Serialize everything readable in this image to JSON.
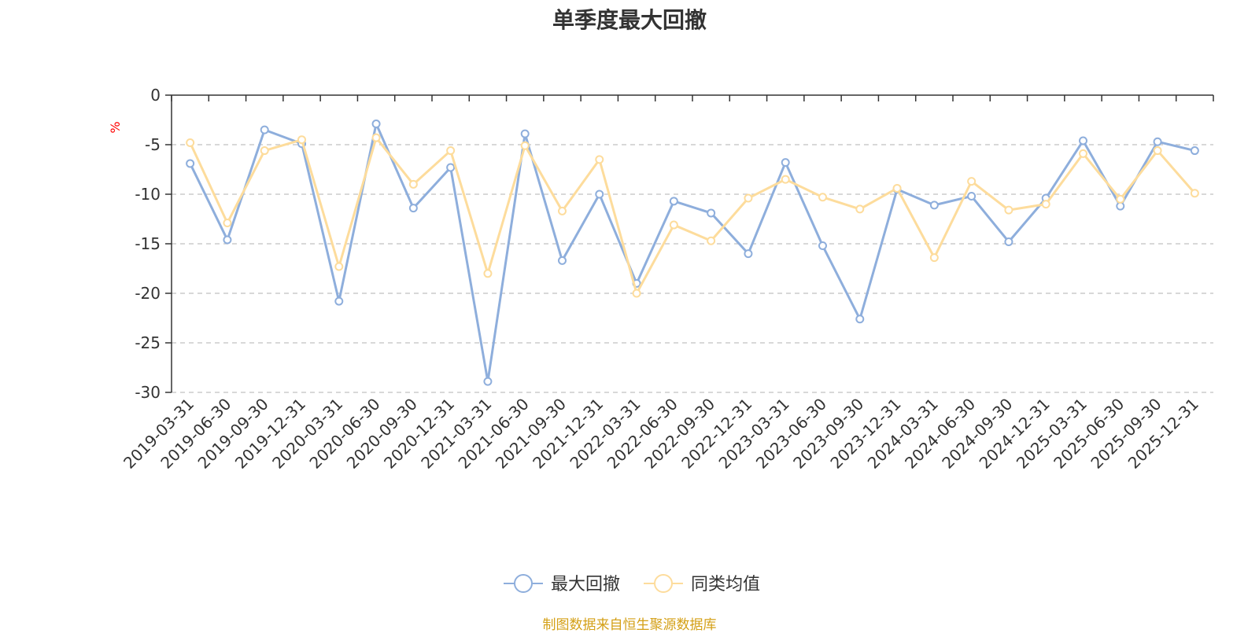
{
  "chart_data": {
    "type": "line",
    "title": "单季度最大回撤",
    "ylabel": "%",
    "ylim": [
      -30,
      0
    ],
    "yticks": [
      0,
      -5,
      -10,
      -15,
      -20,
      -25,
      -30
    ],
    "grid": true,
    "legend_position": "bottom",
    "categories": [
      "2019-03-31",
      "2019-06-30",
      "2019-09-30",
      "2019-12-31",
      "2020-03-31",
      "2020-06-30",
      "2020-09-30",
      "2020-12-31",
      "2021-03-31",
      "2021-06-30",
      "2021-09-30",
      "2021-12-31",
      "2022-03-31",
      "2022-06-30",
      "2022-09-30",
      "2022-12-31",
      "2023-03-31",
      "2023-06-30",
      "2023-09-30",
      "2023-12-31",
      "2024-03-31",
      "2024-06-30",
      "2024-09-30",
      "2024-12-31",
      "2025-03-31",
      "2025-06-30",
      "2025-09-30",
      "2025-12-31"
    ],
    "series": [
      {
        "name": "最大回撤",
        "color": "#8eaedc",
        "values": [
          -6.9,
          -14.6,
          -3.5,
          -4.9,
          -20.8,
          -2.9,
          -11.4,
          -7.3,
          -28.9,
          -3.9,
          -16.7,
          -10.0,
          -19.0,
          -10.7,
          -11.9,
          -16.0,
          -6.8,
          -15.2,
          -22.6,
          -9.5,
          -11.1,
          -10.2,
          -14.8,
          -10.4,
          -4.6,
          -11.2,
          -4.7,
          -5.6
        ]
      },
      {
        "name": "同类均值",
        "color": "#fddc9c",
        "values": [
          -4.8,
          -12.9,
          -5.6,
          -4.5,
          -17.3,
          -4.3,
          -9.0,
          -5.6,
          -18.0,
          -5.1,
          -11.7,
          -6.5,
          -20.0,
          -13.1,
          -14.7,
          -10.4,
          -8.5,
          -10.3,
          -11.5,
          -9.4,
          -16.4,
          -8.7,
          -11.6,
          -11.0,
          -5.9,
          -10.5,
          -5.6,
          -9.9
        ]
      }
    ]
  },
  "source_note": "制图数据来自恒生聚源数据库"
}
